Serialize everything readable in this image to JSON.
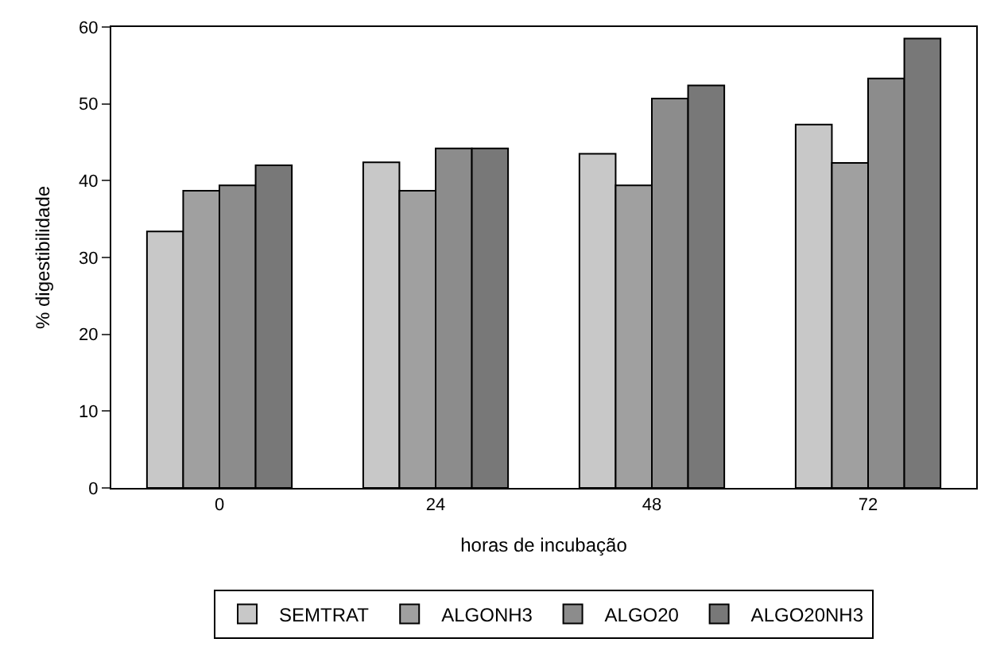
{
  "chart_data": {
    "type": "bar",
    "xlabel": "horas de incubação",
    "ylabel": "% digestibilidade",
    "categories": [
      "0",
      "24",
      "48",
      "72"
    ],
    "series": [
      {
        "name": "SEMTRAT",
        "color": "#c8c8c8",
        "values": [
          33.4,
          42.4,
          43.5,
          47.3
        ]
      },
      {
        "name": "ALGONH3",
        "color": "#a0a0a0",
        "values": [
          38.7,
          38.7,
          39.4,
          42.3
        ]
      },
      {
        "name": "ALGO20",
        "color": "#8c8c8c",
        "values": [
          39.4,
          44.2,
          50.7,
          53.3
        ]
      },
      {
        "name": "ALGO20NH3",
        "color": "#787878",
        "values": [
          42.0,
          44.2,
          52.4,
          58.5
        ]
      }
    ],
    "ylim": [
      0,
      60
    ],
    "yticks": [
      0,
      10,
      20,
      30,
      40,
      50,
      60
    ],
    "legend": "bottom"
  }
}
